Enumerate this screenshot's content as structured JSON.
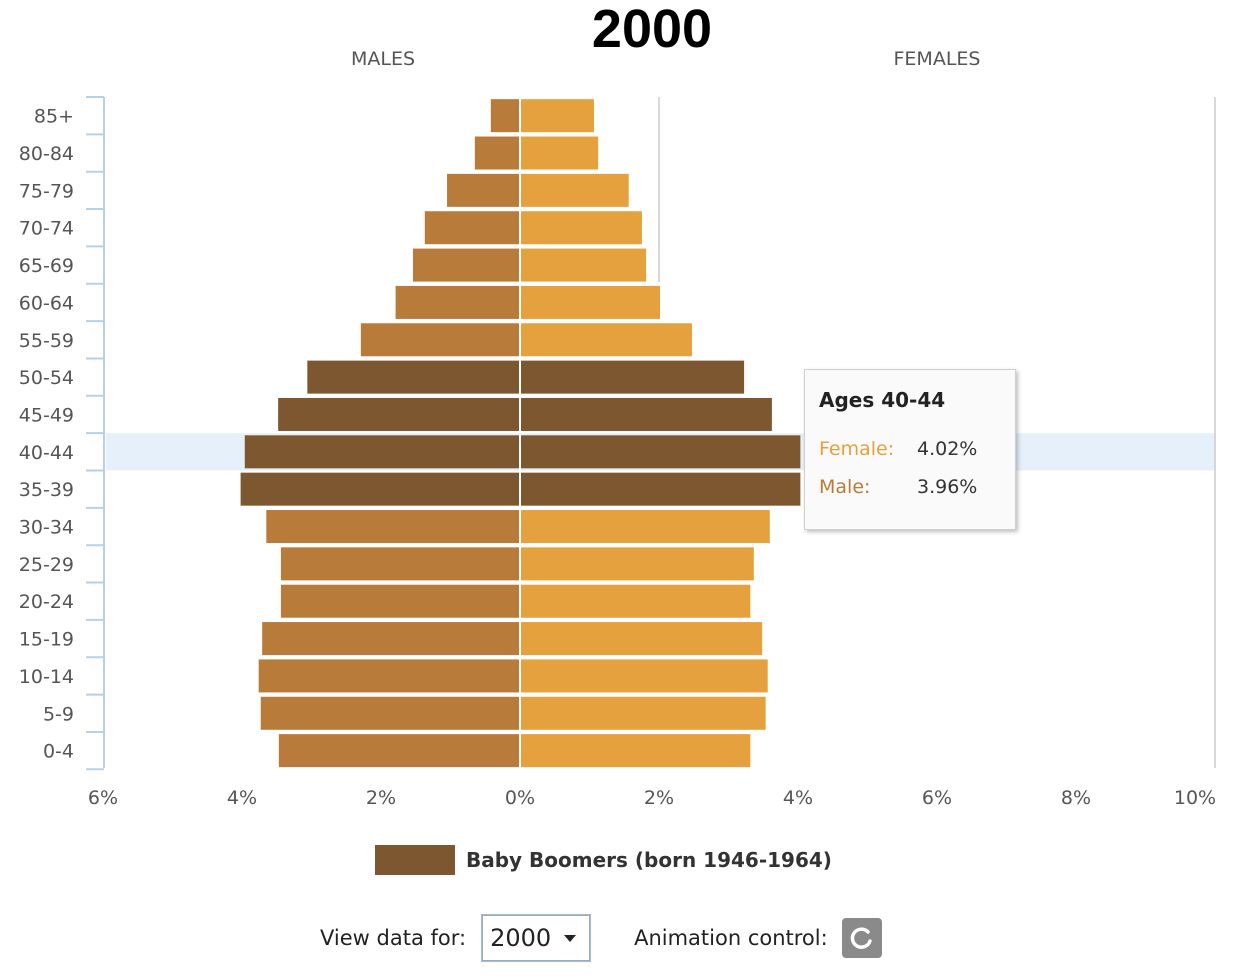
{
  "header": {
    "title": "2000",
    "males_label": "MALES",
    "females_label": "FEMALES"
  },
  "chart_data": {
    "type": "bar",
    "orientation": "horizontal-pyramid",
    "year": "2000",
    "categories": [
      "85+",
      "80-84",
      "75-79",
      "70-74",
      "65-69",
      "60-64",
      "55-59",
      "50-54",
      "45-49",
      "40-44",
      "35-39",
      "30-34",
      "25-29",
      "20-24",
      "15-19",
      "10-14",
      "5-9",
      "0-4"
    ],
    "series": [
      {
        "name": "Male",
        "values": [
          0.42,
          0.65,
          1.05,
          1.37,
          1.54,
          1.79,
          2.29,
          3.06,
          3.48,
          3.96,
          4.02,
          3.65,
          3.44,
          3.44,
          3.71,
          3.76,
          3.73,
          3.47
        ]
      },
      {
        "name": "Female",
        "values": [
          1.05,
          1.11,
          1.55,
          1.74,
          1.8,
          2.0,
          2.46,
          3.21,
          3.61,
          4.02,
          4.02,
          3.58,
          3.35,
          3.3,
          3.47,
          3.55,
          3.52,
          3.3
        ]
      }
    ],
    "baby_boomer_groups": [
      "50-54",
      "45-49",
      "40-44",
      "35-39"
    ],
    "highlighted_group": "40-44",
    "x_left_ticks": [
      "6%",
      "4%",
      "2%"
    ],
    "x_right_ticks": [
      "0%",
      "2%",
      "4%",
      "6%",
      "8%",
      "10%"
    ],
    "xlim_left": [
      0,
      6
    ],
    "xlim_right": [
      0,
      10
    ],
    "colors": {
      "male": "#b97b39",
      "female": "#e5a13d",
      "baby_boomers": "#7d572f",
      "highlight_band": "#e6f0fb",
      "axis": "#b9cfe3",
      "gridline": "#cccccc"
    }
  },
  "tooltip": {
    "title": "Ages 40-44",
    "female_label": "Female:",
    "female_value": "4.02%",
    "male_label": "Male:",
    "male_value": "3.96%",
    "female_color": "#e5a13d",
    "male_color": "#b97b39"
  },
  "legend": {
    "label": "Baby Boomers (born 1946-1964)",
    "color": "#7d572f"
  },
  "controls": {
    "view_label": "View data for:",
    "selected_year": "2000",
    "animation_label": "Animation control:",
    "animation_icon": "replay-icon"
  }
}
